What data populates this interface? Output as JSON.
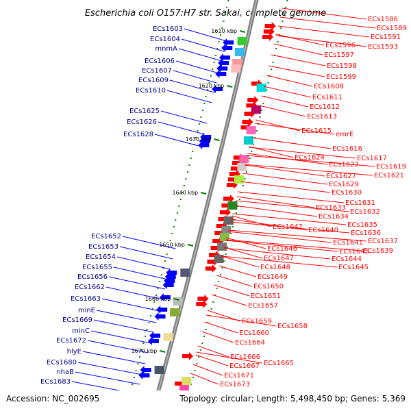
{
  "title": "Escherichia coli O157:H7 str. Sakai, complete genome",
  "accession": "Accession: NC_002695",
  "summary": "Topology: circular; Length: 5,498,450 bp; Genes: 5,369",
  "colors": {
    "axis": "#808080",
    "forward": "#ff0000",
    "reverse": "#0000ff",
    "tick": "#008000",
    "leftLabel": "#00008b",
    "rightLabel": "#ff0000"
  },
  "ticks": [
    {
      "label": "1610 kbp"
    },
    {
      "label": "1620 kbp"
    },
    {
      "label": "1630 kbp"
    },
    {
      "label": "1640 kbp"
    },
    {
      "label": "1650 kbp"
    },
    {
      "label": "1660 kbp"
    },
    {
      "label": "1670 kbp"
    }
  ],
  "left_labels": [
    "ECs1603",
    "ECs1604",
    "mnmA",
    "ECs1606",
    "ECs1607",
    "ECs1609",
    "ECs1610",
    "ECs1625",
    "ECs1626",
    "ECs1628",
    "ECs1652",
    "ECs1653",
    "ECs1654",
    "ECs1655",
    "ECs1656",
    "ECs1662",
    "ECs1663",
    "minE",
    "ECs1669",
    "minC",
    "ECs1672",
    "hlyE",
    "ECs1680",
    "nhaB",
    "ECs1683"
  ],
  "right_labels": [
    "ECs1586",
    "ECs1589",
    "ECs1591",
    "ECs1593",
    "ECs1596",
    "ECs1597",
    "ECs1598",
    "ECs1599",
    "ECs1608",
    "ECs1611",
    "ECs1612",
    "ECs1613",
    "ECs1615",
    "emrE",
    "ECs1616",
    "ECs1617",
    "ECs1624",
    "ECs1622",
    "ECs1619",
    "ECs1621",
    "ECs1627",
    "ECs1629",
    "ECs1630",
    "ECs1631",
    "ECs1633",
    "ECs1632",
    "ECs1634",
    "ECs1635",
    "ECs1642",
    "ECs1640",
    "ECs1636",
    "ECs1641",
    "ECs1637",
    "ECs1639",
    "ECs1646",
    "ECs1643",
    "ECs1647",
    "ECs1644",
    "ECs1648",
    "ECs1645",
    "ECs1649",
    "ECs1650",
    "ECs1651",
    "ECs1657",
    "ECs1659",
    "ECs1658",
    "ECs1660",
    "ECs1664",
    "ECs1666",
    "ECs1665",
    "ECs1667",
    "ECs1671",
    "ECs1673"
  ]
}
